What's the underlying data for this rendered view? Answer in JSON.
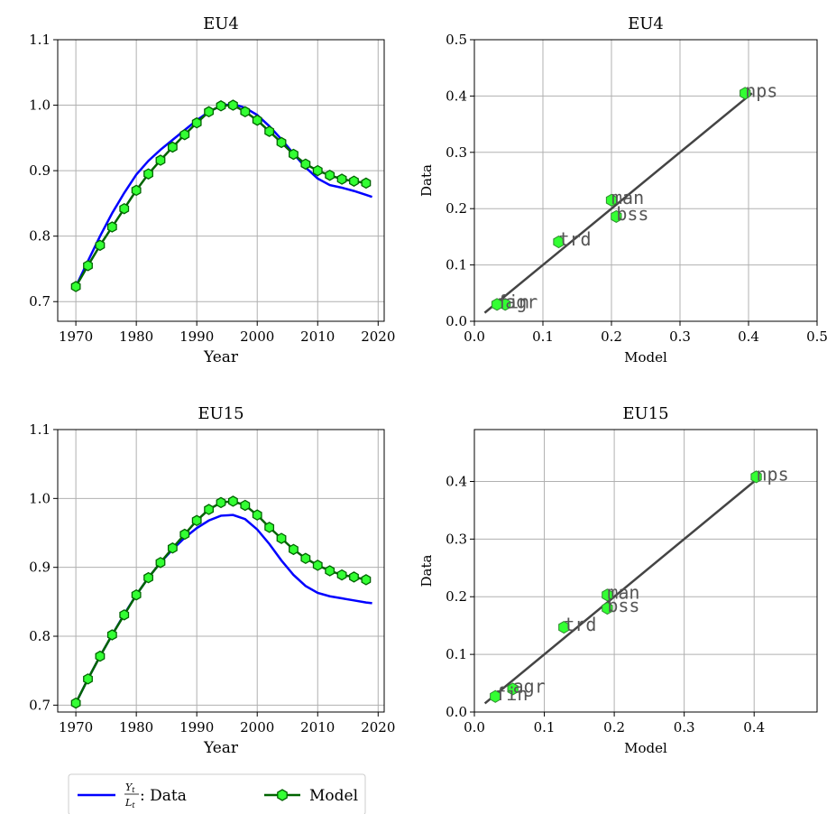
{
  "legend": {
    "data_label_num": "Y",
    "data_label_num_sub": "t",
    "data_label_den": "L",
    "data_label_den_sub": "t",
    "data_label_suffix": ": Data",
    "model_label": "Model"
  },
  "colors": {
    "data_line": "#0000ff",
    "model_line": "#006400",
    "model_marker_fill": "#33ff33",
    "fit_line": "#444444",
    "scatter_fill": "#33ff33"
  },
  "chart_data": [
    {
      "type": "line",
      "title": "EU4",
      "xlabel": "Year",
      "ylabel": "",
      "xlim": [
        1967,
        2021
      ],
      "ylim": [
        0.67,
        1.1
      ],
      "xticks": [
        1970,
        1980,
        1990,
        2000,
        2010,
        2020
      ],
      "yticks": [
        0.7,
        0.8,
        0.9,
        1.0,
        1.1
      ],
      "ytick_labels": [
        "0.7",
        "0.8",
        "0.9",
        "1.0",
        "1.1"
      ],
      "grid": true,
      "series": [
        {
          "name": "Data",
          "x": [
            1970,
            1972,
            1974,
            1976,
            1978,
            1980,
            1982,
            1984,
            1986,
            1988,
            1990,
            1992,
            1994,
            1996,
            1998,
            2000,
            2002,
            2004,
            2006,
            2008,
            2010,
            2012,
            2014,
            2016,
            2018,
            2019
          ],
          "values": [
            0.723,
            0.762,
            0.8,
            0.835,
            0.866,
            0.894,
            0.915,
            0.932,
            0.947,
            0.962,
            0.977,
            0.99,
            0.999,
            1.002,
            0.996,
            0.985,
            0.968,
            0.948,
            0.926,
            0.905,
            0.888,
            0.878,
            0.874,
            0.869,
            0.863,
            0.86
          ]
        },
        {
          "name": "Model",
          "x": [
            1970,
            1972,
            1974,
            1976,
            1978,
            1980,
            1982,
            1984,
            1986,
            1988,
            1990,
            1992,
            1994,
            1996,
            1998,
            2000,
            2002,
            2004,
            2006,
            2008,
            2010,
            2012,
            2014,
            2016,
            2018
          ],
          "values": [
            0.723,
            0.755,
            0.786,
            0.814,
            0.842,
            0.87,
            0.895,
            0.916,
            0.936,
            0.955,
            0.973,
            0.99,
            0.999,
            1.0,
            0.99,
            0.977,
            0.96,
            0.943,
            0.925,
            0.91,
            0.9,
            0.893,
            0.887,
            0.884,
            0.881
          ]
        }
      ]
    },
    {
      "type": "scatter",
      "title": "EU4",
      "xlabel": "Model",
      "ylabel": "Data",
      "xlim": [
        0.0,
        0.5
      ],
      "ylim": [
        0.0,
        0.5
      ],
      "xticks": [
        0.0,
        0.1,
        0.2,
        0.3,
        0.4,
        0.5
      ],
      "yticks": [
        0.0,
        0.1,
        0.2,
        0.3,
        0.4,
        0.5
      ],
      "grid": true,
      "fit_line": [
        [
          0.015,
          0.015
        ],
        [
          0.405,
          0.405
        ]
      ],
      "points": [
        {
          "label": "agr",
          "x": 0.045,
          "y": 0.03
        },
        {
          "label": "fin",
          "x": 0.033,
          "y": 0.03
        },
        {
          "label": "trd",
          "x": 0.123,
          "y": 0.141
        },
        {
          "label": "man",
          "x": 0.2,
          "y": 0.215
        },
        {
          "label": "bss",
          "x": 0.207,
          "y": 0.186
        },
        {
          "label": "nps",
          "x": 0.395,
          "y": 0.405
        }
      ]
    },
    {
      "type": "line",
      "title": "EU15",
      "xlabel": "Year",
      "ylabel": "",
      "xlim": [
        1967,
        2021
      ],
      "ylim": [
        0.69,
        1.1
      ],
      "xticks": [
        1970,
        1980,
        1990,
        2000,
        2010,
        2020
      ],
      "yticks": [
        0.7,
        0.8,
        0.9,
        1.0,
        1.1
      ],
      "ytick_labels": [
        "0.7",
        "0.8",
        "0.9",
        "1.0",
        "1.1"
      ],
      "grid": true,
      "series": [
        {
          "name": "Data",
          "x": [
            1970,
            1972,
            1974,
            1976,
            1978,
            1980,
            1982,
            1984,
            1986,
            1988,
            1990,
            1992,
            1994,
            1996,
            1998,
            2000,
            2002,
            2004,
            2006,
            2008,
            2010,
            2012,
            2014,
            2016,
            2018,
            2019
          ],
          "values": [
            0.703,
            0.738,
            0.771,
            0.802,
            0.832,
            0.86,
            0.885,
            0.907,
            0.926,
            0.943,
            0.957,
            0.968,
            0.975,
            0.976,
            0.97,
            0.955,
            0.934,
            0.91,
            0.889,
            0.873,
            0.863,
            0.858,
            0.855,
            0.852,
            0.849,
            0.848
          ]
        },
        {
          "name": "Model",
          "x": [
            1970,
            1972,
            1974,
            1976,
            1978,
            1980,
            1982,
            1984,
            1986,
            1988,
            1990,
            1992,
            1994,
            1996,
            1998,
            2000,
            2002,
            2004,
            2006,
            2008,
            2010,
            2012,
            2014,
            2016,
            2018
          ],
          "values": [
            0.703,
            0.738,
            0.771,
            0.802,
            0.831,
            0.86,
            0.885,
            0.907,
            0.928,
            0.948,
            0.968,
            0.984,
            0.994,
            0.996,
            0.99,
            0.976,
            0.958,
            0.942,
            0.926,
            0.913,
            0.903,
            0.895,
            0.889,
            0.886,
            0.882
          ]
        }
      ]
    },
    {
      "type": "scatter",
      "title": "EU15",
      "xlabel": "Model",
      "ylabel": "Data",
      "xlim": [
        0.0,
        0.49
      ],
      "ylim": [
        0.0,
        0.49
      ],
      "xticks": [
        0.0,
        0.1,
        0.2,
        0.3,
        0.4
      ],
      "yticks": [
        0.0,
        0.1,
        0.2,
        0.3,
        0.4
      ],
      "grid": true,
      "fit_line": [
        [
          0.015,
          0.015
        ],
        [
          0.41,
          0.41
        ]
      ],
      "points": [
        {
          "label": "fin",
          "x": 0.03,
          "y": 0.027
        },
        {
          "label": "agr",
          "x": 0.055,
          "y": 0.04
        },
        {
          "label": "trd",
          "x": 0.128,
          "y": 0.147
        },
        {
          "label": "man",
          "x": 0.19,
          "y": 0.203
        },
        {
          "label": "bss",
          "x": 0.19,
          "y": 0.18
        },
        {
          "label": "nps",
          "x": 0.403,
          "y": 0.408
        }
      ]
    }
  ]
}
